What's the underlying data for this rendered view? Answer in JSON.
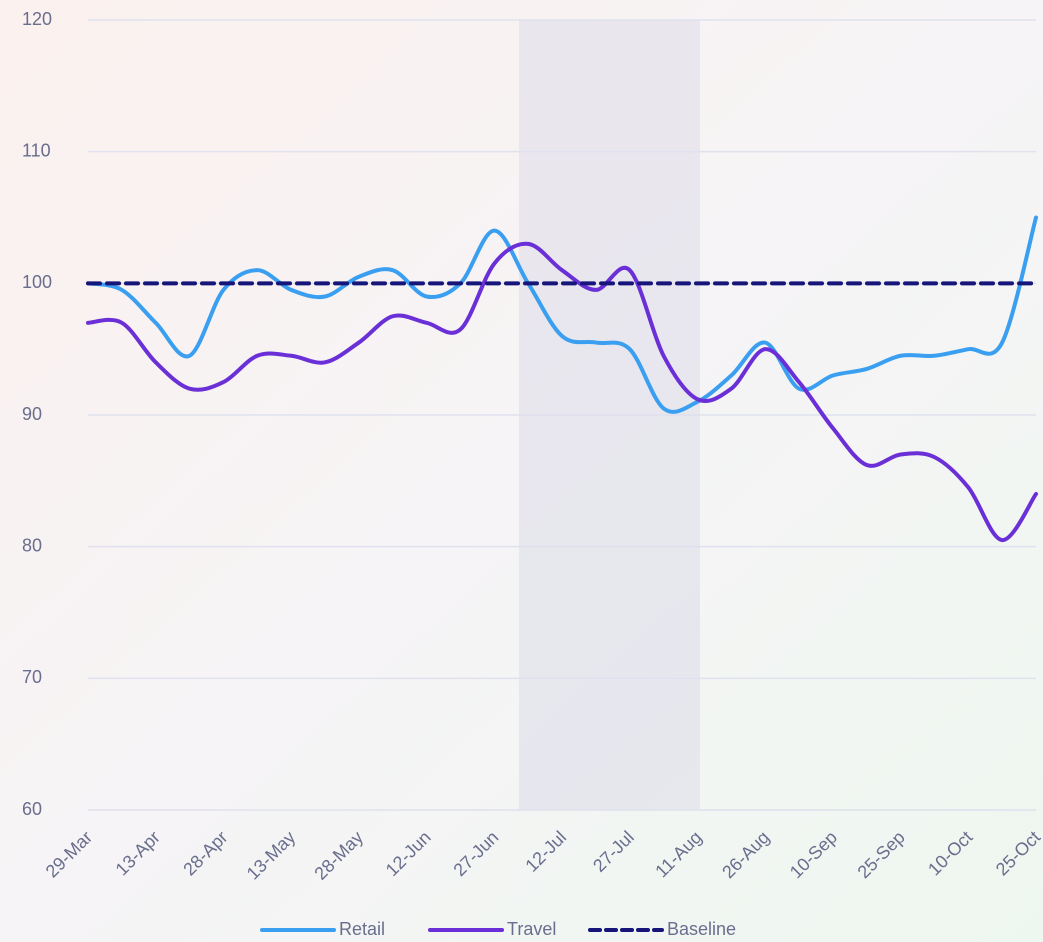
{
  "chart_data": {
    "type": "line",
    "categories": [
      "29-Mar",
      null,
      "13-Apr",
      null,
      "28-Apr",
      null,
      "13-May",
      null,
      "28-May",
      null,
      "12-Jun",
      null,
      "27-Jun",
      null,
      "12-Jul",
      null,
      "27-Jul",
      null,
      "11-Aug",
      null,
      "26-Aug",
      null,
      "10-Sep",
      null,
      "25-Sep",
      null,
      "10-Oct",
      null,
      "25-Oct"
    ],
    "series": [
      {
        "name": "Retail",
        "color": "#3a9ff0",
        "dashed": false,
        "values": [
          100,
          99.5,
          97,
          94.5,
          99.5,
          101,
          99.5,
          99,
          100.5,
          101,
          99,
          100,
          104,
          100,
          96,
          95.5,
          95,
          90.5,
          91,
          93,
          95.5,
          92,
          93,
          93.5,
          94.5,
          94.5,
          95,
          95.5,
          105
        ]
      },
      {
        "name": "Travel",
        "color": "#6a2fd6",
        "dashed": false,
        "values": [
          97,
          97,
          94,
          92,
          92.5,
          94.5,
          94.5,
          94,
          95.5,
          97.5,
          97,
          96.5,
          101.5,
          103,
          101,
          99.5,
          101,
          94.5,
          91.2,
          92,
          95,
          92.5,
          89,
          86.2,
          87,
          86.8,
          84.5,
          80.5,
          84
        ]
      },
      {
        "name": "Baseline",
        "color": "#15157a",
        "dashed": true,
        "values": [
          100,
          100,
          100,
          100,
          100,
          100,
          100,
          100,
          100,
          100,
          100,
          100,
          100,
          100,
          100,
          100,
          100,
          100,
          100,
          100,
          100,
          100,
          100,
          100,
          100,
          100,
          100,
          100,
          100
        ]
      }
    ],
    "ylim": [
      60,
      120
    ],
    "yticks": [
      60,
      70,
      80,
      90,
      100,
      110,
      120
    ],
    "grid": true,
    "legend": "bottom"
  }
}
